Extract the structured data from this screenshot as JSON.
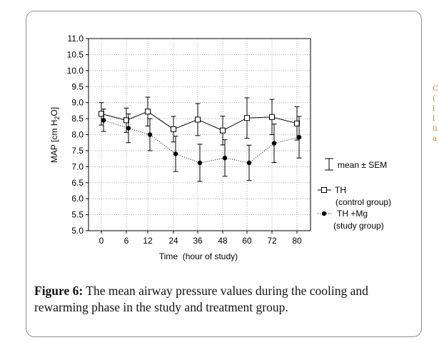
{
  "side_fragment": [
    "C",
    "(",
    "l",
    "l",
    "ii",
    "a"
  ],
  "chart_data": {
    "type": "line",
    "ylabel_parts": [
      "MAP [cm H",
      "2",
      "O]"
    ],
    "xlabel": "Time  (hour of study)",
    "categories": [
      "0",
      "6",
      "12",
      "24",
      "36",
      "48",
      "60",
      "72",
      "80"
    ],
    "ylim": [
      5.0,
      11.0
    ],
    "yticks": [
      "5.0",
      "5.5",
      "6.0",
      "6.5",
      "7.0",
      "7.5",
      "8.0",
      "8.5",
      "9.0",
      "9.5",
      "10.0",
      "10.5",
      "11.0"
    ],
    "grid": true,
    "series": [
      {
        "name": "TH",
        "name_detail": "(control group)",
        "marker": "open-square",
        "line_style": "solid",
        "values": [
          8.65,
          8.45,
          8.72,
          8.17,
          8.47,
          8.13,
          8.52,
          8.55,
          8.35
        ],
        "sem": [
          0.35,
          0.38,
          0.45,
          0.4,
          0.5,
          0.45,
          0.63,
          0.55,
          0.52
        ]
      },
      {
        "name": "TH +Mg",
        "name_detail": "(study group)",
        "marker": "filled-circle",
        "line_style": "dotted",
        "values": [
          8.45,
          8.2,
          8.0,
          7.4,
          7.12,
          7.27,
          7.12,
          7.73,
          7.92
        ],
        "sem": [
          0.35,
          0.45,
          0.5,
          0.55,
          0.58,
          0.57,
          0.55,
          0.6,
          0.65
        ]
      }
    ],
    "legend": {
      "errorbar_label": "mean ± SEM",
      "placement": "right"
    }
  },
  "caption": {
    "label": "Figure 6:",
    "text": " The mean airway pressure values during the cooling and rewarming phase in the study and treatment group."
  }
}
